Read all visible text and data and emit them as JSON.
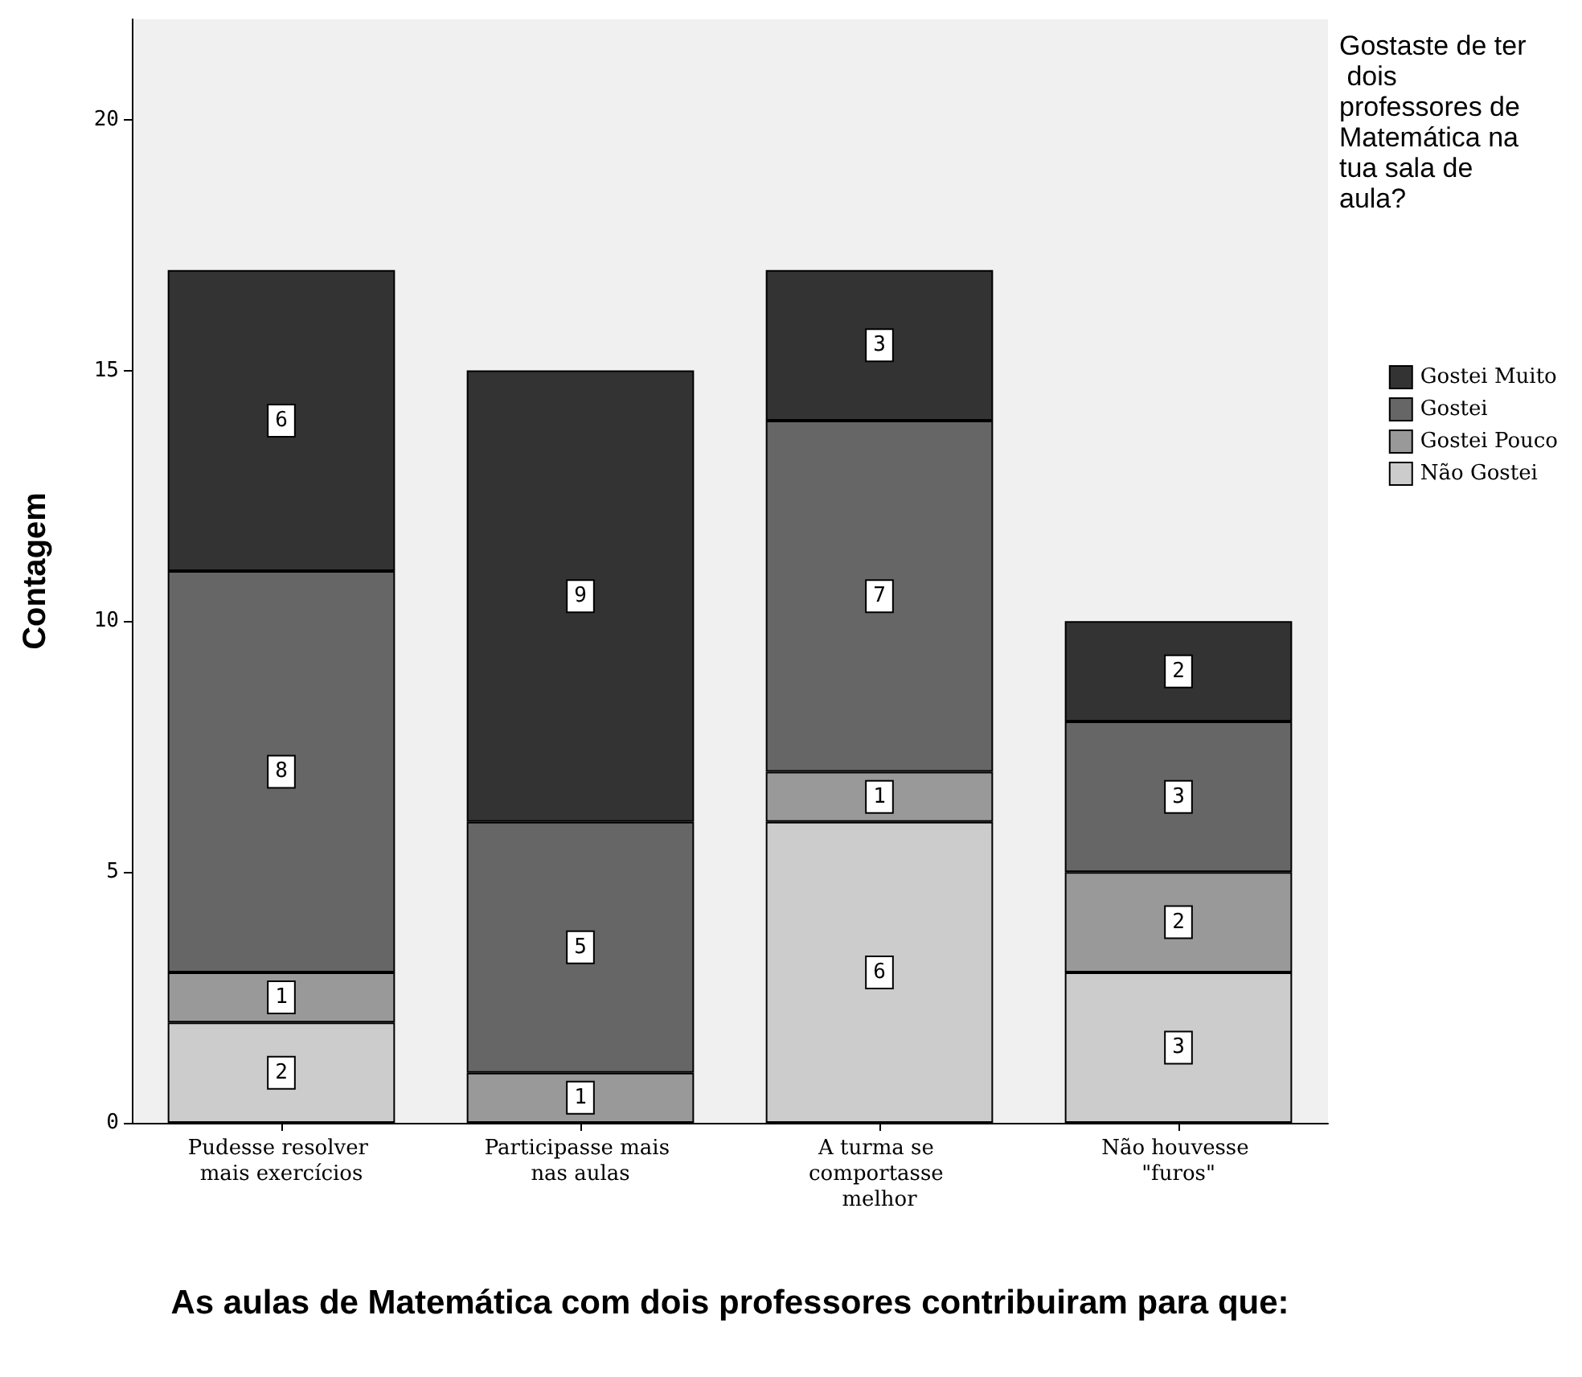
{
  "chart_data": {
    "type": "bar",
    "stacked": true,
    "xlabel": "As aulas de Matemática com dois professores contribuiram para que:",
    "ylabel": "Contagem",
    "legend_title": "Gostaste de ter dois professores de Matemática na tua sala de aula?",
    "categories": [
      "Pudesse resolver mais exercícios",
      "Participasse mais nas aulas",
      "A turma se comportasse melhor",
      "Não houvesse \"furos\""
    ],
    "series": [
      {
        "name": "Não Gostei",
        "color": "#cccccc",
        "values": [
          2,
          null,
          6,
          3
        ]
      },
      {
        "name": "Gostei Pouco",
        "color": "#999999",
        "values": [
          1,
          1,
          1,
          2
        ]
      },
      {
        "name": "Gostei",
        "color": "#666666",
        "values": [
          8,
          5,
          7,
          3
        ]
      },
      {
        "name": "Gostei Muito",
        "color": "#333333",
        "values": [
          6,
          9,
          3,
          2
        ]
      }
    ],
    "ylim": [
      0,
      22
    ],
    "yticks": [
      0,
      5,
      10,
      15,
      20
    ],
    "grid": false,
    "legend": "right",
    "data_labels": true
  }
}
